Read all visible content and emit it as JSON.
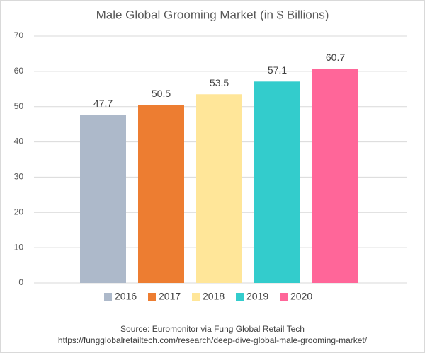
{
  "chart_data": {
    "type": "bar",
    "title": "Male Global Grooming Market (in $ Billions)",
    "series": [
      {
        "name": "2016",
        "color": "#adb9ca",
        "values": [
          47.7
        ]
      },
      {
        "name": "2017",
        "color": "#ed7d31",
        "values": [
          50.5
        ]
      },
      {
        "name": "2018",
        "color": "#ffe699",
        "values": [
          53.5
        ]
      },
      {
        "name": "2019",
        "color": "#33cccc",
        "values": [
          57.1
        ]
      },
      {
        "name": "2020",
        "color": "#ff6699",
        "values": [
          60.7
        ]
      }
    ],
    "ylim": [
      0,
      70
    ],
    "yticks": [
      0,
      10,
      20,
      30,
      40,
      50,
      60,
      70
    ],
    "grid": true,
    "legend": "bottom",
    "source": "Source:  Euromonitor via Fung Global Retail Tech",
    "source_url": "https://fungglobalretailtech.com/research/deep-dive-global-male-grooming-market/"
  }
}
